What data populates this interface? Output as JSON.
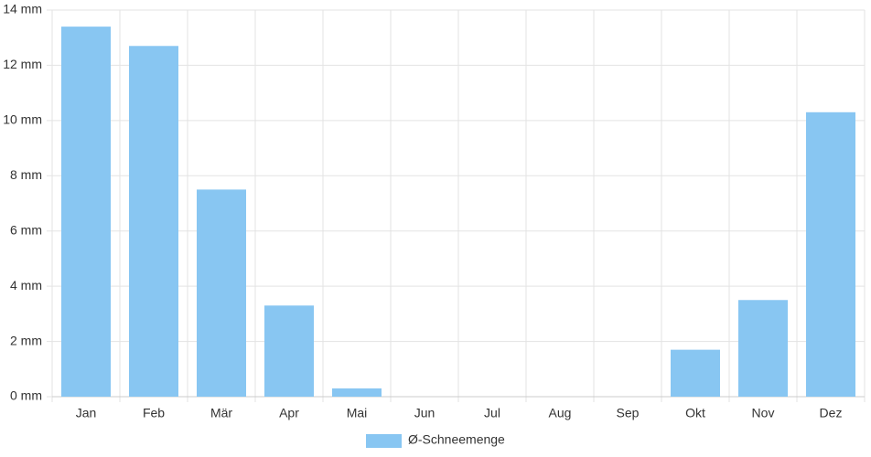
{
  "chart_data": {
    "type": "bar",
    "categories": [
      "Jan",
      "Feb",
      "Mär",
      "Apr",
      "Mai",
      "Jun",
      "Jul",
      "Aug",
      "Sep",
      "Okt",
      "Nov",
      "Dez"
    ],
    "series": [
      {
        "name": "Ø-Schneemenge",
        "color": "#88c6f2",
        "values": [
          13.4,
          12.7,
          7.5,
          3.3,
          0.3,
          0,
          0,
          0,
          0,
          1.7,
          3.5,
          10.3
        ]
      }
    ],
    "ylim": [
      0,
      14
    ],
    "yticks": [
      {
        "value": 0,
        "label": "0 mm"
      },
      {
        "value": 2,
        "label": "2 mm"
      },
      {
        "value": 4,
        "label": "4 mm"
      },
      {
        "value": 6,
        "label": "6 mm"
      },
      {
        "value": 8,
        "label": "8 mm"
      },
      {
        "value": 10,
        "label": "10 mm"
      },
      {
        "value": 12,
        "label": "12 mm"
      },
      {
        "value": 14,
        "label": "14 mm"
      }
    ],
    "grid": true,
    "legend": "bottom"
  }
}
